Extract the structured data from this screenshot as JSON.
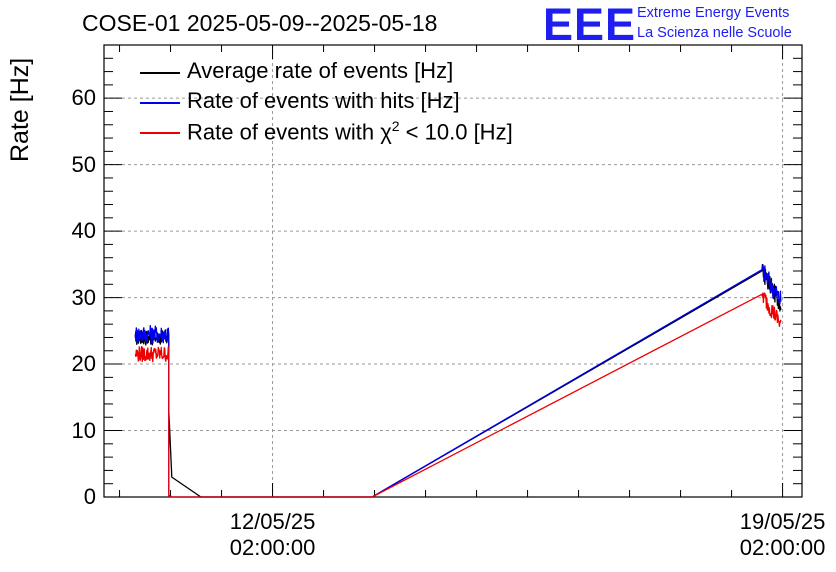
{
  "chart_data": {
    "type": "line",
    "title": "COSE-01 2025-05-09--2025-05-18",
    "ylabel": "Rate [Hz]",
    "xlabel": "",
    "ylim": [
      0,
      68
    ],
    "yticks": [
      0,
      10,
      20,
      30,
      40,
      50,
      60
    ],
    "x_unit": "days since 2025-05-09 00:00",
    "xlim": [
      0.77,
      10.35
    ],
    "xticks": [
      {
        "x": 3.0833,
        "date": "12/05/25",
        "time": "02:00:00"
      },
      {
        "x": 10.0833,
        "date": "19/05/25",
        "time": "02:00:00"
      }
    ],
    "grid": true,
    "legend_position": "top-left",
    "series": [
      {
        "name": "Average rate of events [Hz]",
        "color": "#000000",
        "noisy_until": 1.66,
        "points": [
          [
            1.2,
            24.0
          ],
          [
            1.66,
            24.0
          ],
          [
            1.66,
            13.0
          ],
          [
            1.68,
            8.0
          ],
          [
            1.7,
            3.0
          ],
          [
            2.1,
            0.0
          ],
          [
            2.3,
            0.0
          ],
          [
            4.45,
            0.0
          ],
          [
            9.8,
            34.0
          ],
          [
            10.06,
            29.0
          ]
        ]
      },
      {
        "name": "Rate of events with hits [Hz]",
        "color": "#0000ee",
        "noisy_until": 1.66,
        "points": [
          [
            1.2,
            24.5
          ],
          [
            1.66,
            24.5
          ],
          [
            1.66,
            0.3
          ],
          [
            1.7,
            0.0
          ],
          [
            4.45,
            0.0
          ],
          [
            9.8,
            34.2
          ],
          [
            10.06,
            29.5
          ]
        ]
      },
      {
        "name": "Rate of events with χ² < 10.0 [Hz]",
        "color": "#ee0000",
        "noisy_until": 1.66,
        "points": [
          [
            1.2,
            21.5
          ],
          [
            1.66,
            21.5
          ],
          [
            1.66,
            0.2
          ],
          [
            1.7,
            0.0
          ],
          [
            4.45,
            0.0
          ],
          [
            9.8,
            30.5
          ],
          [
            10.06,
            26.0
          ]
        ]
      }
    ],
    "legend": [
      {
        "label_pre": "Average rate of events [Hz]",
        "label_sup": "",
        "label_post": "",
        "color": "#000000"
      },
      {
        "label_pre": "Rate of events with hits [Hz]",
        "label_sup": "",
        "label_post": "",
        "color": "#0000ee"
      },
      {
        "label_pre": "Rate of events with χ",
        "label_sup": "2",
        "label_post": " < 10.0 [Hz]",
        "color": "#ee0000"
      }
    ]
  },
  "logo": {
    "mark": "EEE",
    "line1": "Extreme Energy Events",
    "line2": "La Scienza nelle Scuole"
  }
}
